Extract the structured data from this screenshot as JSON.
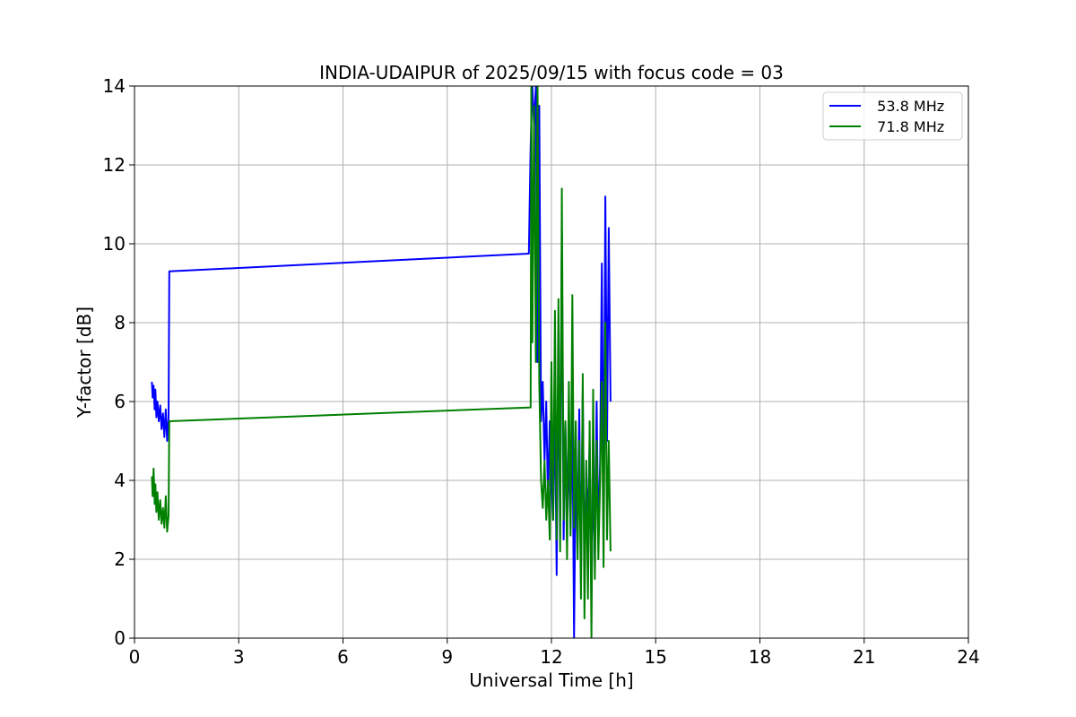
{
  "chart_data": {
    "type": "line",
    "title": "INDIA-UDAIPUR of 2025/09/15 with focus code = 03",
    "xlabel": "Universal Time [h]",
    "ylabel": "Y-factor [dB]",
    "xlim": [
      0,
      24
    ],
    "ylim": [
      0,
      14
    ],
    "xticks": [
      0,
      3,
      6,
      9,
      12,
      15,
      18,
      21,
      24
    ],
    "yticks": [
      0,
      2,
      4,
      6,
      8,
      10,
      12,
      14
    ],
    "grid": true,
    "legend_position": "top-right",
    "series": [
      {
        "name": "  53.8 MHz",
        "color": "#0000ff",
        "x": [
          0.5,
          0.52,
          0.55,
          0.58,
          0.6,
          0.63,
          0.66,
          0.7,
          0.74,
          0.78,
          0.82,
          0.86,
          0.9,
          0.94,
          0.98,
          1.0,
          11.35,
          11.4,
          11.45,
          11.5,
          11.55,
          11.6,
          11.65,
          11.7,
          11.75,
          11.8,
          11.85,
          11.9,
          11.95,
          12.0,
          12.05,
          12.1,
          12.15,
          12.2,
          12.25,
          12.3,
          12.35,
          12.4,
          12.45,
          12.5,
          12.55,
          12.6,
          12.65,
          12.7,
          12.75,
          12.8,
          12.85,
          12.9,
          12.95,
          13.0,
          13.05,
          13.1,
          13.15,
          13.2,
          13.25,
          13.3,
          13.35,
          13.4,
          13.45,
          13.5,
          13.55,
          13.6,
          13.65,
          13.7
        ],
        "y": [
          6.5,
          6.1,
          6.4,
          5.8,
          6.3,
          5.6,
          6.0,
          5.5,
          5.9,
          5.3,
          5.7,
          5.1,
          5.8,
          5.0,
          5.6,
          9.3,
          9.75,
          12.5,
          14.0,
          13.0,
          14.0,
          7.0,
          13.5,
          5.5,
          6.5,
          4.5,
          6.0,
          3.5,
          5.5,
          4.0,
          3.0,
          6.0,
          1.6,
          7.0,
          3.0,
          10.3,
          2.5,
          5.5,
          3.2,
          4.5,
          2.8,
          6.0,
          0.0,
          4.5,
          2.5,
          5.8,
          1.5,
          6.2,
          2.0,
          4.0,
          3.0,
          5.0,
          1.0,
          4.2,
          2.0,
          6.0,
          2.5,
          4.5,
          9.5,
          3.0,
          11.2,
          5.0,
          10.4,
          6.0
        ]
      },
      {
        "name": "  71.8 MHz",
        "color": "#008000",
        "x": [
          0.5,
          0.52,
          0.55,
          0.58,
          0.6,
          0.63,
          0.66,
          0.7,
          0.74,
          0.78,
          0.82,
          0.86,
          0.9,
          0.94,
          0.98,
          1.0,
          11.4,
          11.42,
          11.45,
          11.5,
          11.55,
          11.6,
          11.65,
          11.7,
          11.75,
          11.8,
          11.85,
          11.9,
          11.95,
          12.0,
          12.05,
          12.1,
          12.15,
          12.2,
          12.25,
          12.3,
          12.35,
          12.4,
          12.45,
          12.5,
          12.55,
          12.6,
          12.65,
          12.7,
          12.75,
          12.8,
          12.85,
          12.9,
          12.95,
          13.0,
          13.05,
          13.1,
          13.15,
          13.2,
          13.25,
          13.3,
          13.35,
          13.4,
          13.45,
          13.5,
          13.55,
          13.6,
          13.65,
          13.7
        ],
        "y": [
          4.1,
          3.6,
          4.3,
          3.4,
          3.9,
          3.2,
          3.7,
          3.0,
          3.5,
          2.9,
          3.3,
          2.8,
          3.6,
          2.7,
          3.1,
          5.5,
          5.85,
          14.0,
          7.5,
          13.5,
          7.0,
          14.0,
          6.5,
          4.0,
          3.3,
          4.5,
          3.0,
          4.0,
          2.5,
          7.0,
          3.0,
          8.3,
          2.5,
          8.6,
          2.2,
          11.4,
          3.0,
          5.5,
          2.0,
          6.5,
          2.6,
          8.7,
          2.8,
          5.5,
          2.0,
          5.0,
          1.0,
          6.7,
          0.5,
          4.5,
          1.0,
          5.5,
          0.0,
          6.3,
          1.5,
          5.0,
          2.0,
          4.0,
          6.5,
          1.8,
          8.0,
          2.5,
          5.0,
          2.2
        ]
      }
    ]
  }
}
